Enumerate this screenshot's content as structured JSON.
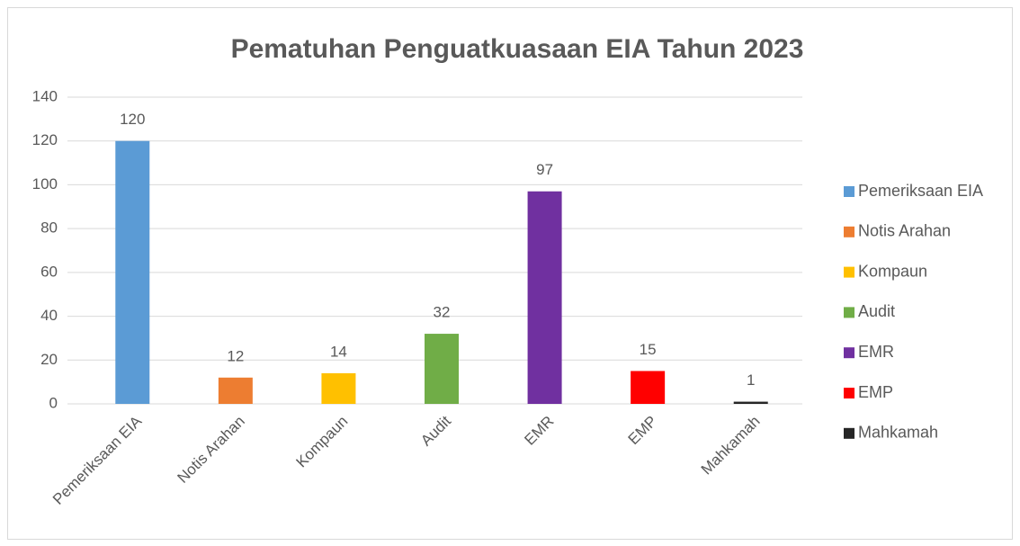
{
  "chart_data": {
    "type": "bar",
    "title": "Pematuhan Penguatkuasaan EIA Tahun 2023",
    "categories": [
      "Pemeriksaan EIA",
      "Notis Arahan",
      "Kompaun",
      "Audit",
      "EMR",
      "EMP",
      "Mahkamah"
    ],
    "values": [
      120,
      12,
      14,
      32,
      97,
      15,
      1
    ],
    "colors": [
      "#5b9bd5",
      "#ed7d31",
      "#ffc000",
      "#70ad47",
      "#7030a0",
      "#ff0000",
      "#262626"
    ],
    "ylim": [
      0,
      140
    ],
    "yticks": [
      0,
      20,
      40,
      60,
      80,
      100,
      120,
      140
    ],
    "grid": true,
    "legend": "right"
  }
}
